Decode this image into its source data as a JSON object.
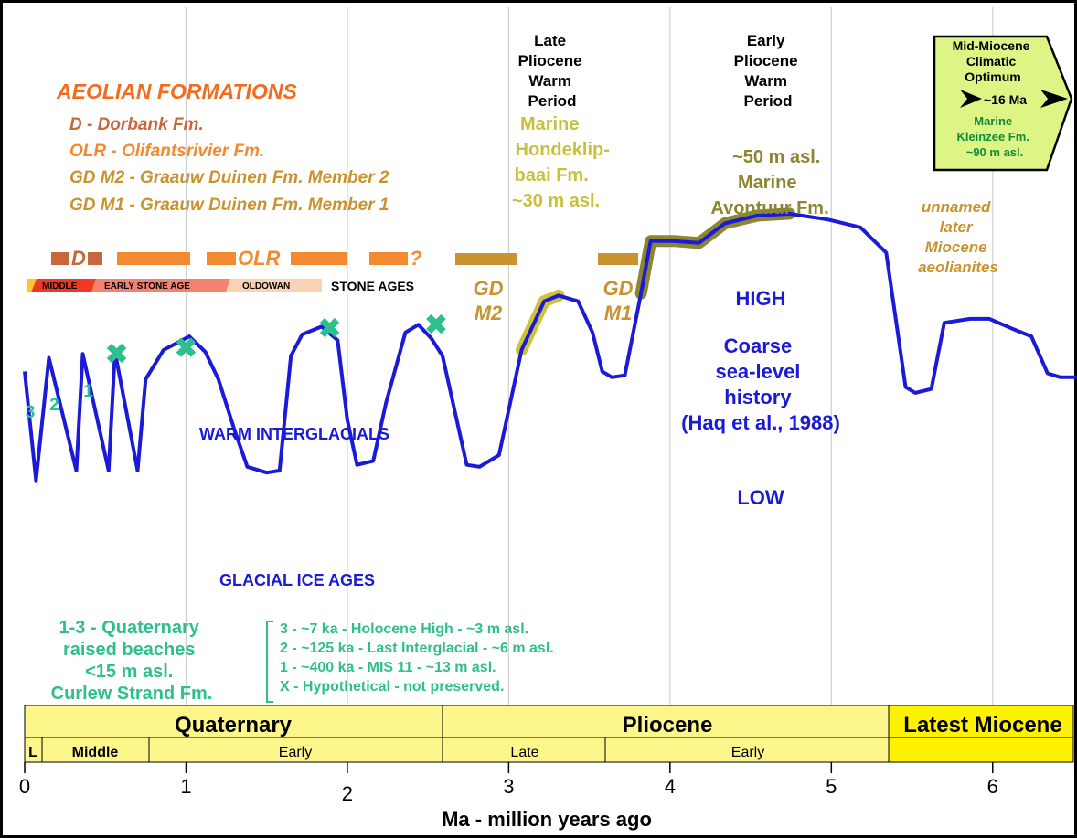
{
  "axis": {
    "xlabel": "Ma - million years ago",
    "xlim": [
      0,
      6.5
    ],
    "ticks": [
      "0",
      "1",
      "2",
      "3",
      "4",
      "5",
      "6"
    ]
  },
  "colors": {
    "curve": "#1a1ad8",
    "interval_band": "#cdc23a",
    "avontuur_band": "#8e8530",
    "beaches": "#2fbf8f",
    "aeolian_title": "#f36c1e",
    "dorbank": "#c8663c",
    "olifants": "#f38a30",
    "gd": "#c99330",
    "epoch_band": "#fdf68a",
    "latest_miocene": "#fff200",
    "miocene_box": "#dcf585"
  },
  "aeolian": {
    "title": "AEOLIAN FORMATIONS",
    "items": [
      "D - Dorbank Fm.",
      "OLR - Olifantsrivier Fm.",
      "GD M2 - Graauw Duinen Fm. Member 2",
      "GD M1 - Graauw Duinen Fm. Member 1"
    ],
    "bar_labels": {
      "d": "D",
      "olr": "OLR",
      "q": "?",
      "gd_m2": "GD M2",
      "gd_m1": "GD M1"
    }
  },
  "stone_ages": {
    "label": "STONE AGES",
    "segments": [
      "MIDDLE",
      "EARLY STONE AGE",
      "OLDOWAN"
    ]
  },
  "periods": {
    "late_pliocene": [
      "Late",
      "Pliocene",
      "Warm",
      "Period"
    ],
    "early_pliocene": [
      "Early",
      "Pliocene",
      "Warm",
      "Period"
    ],
    "mid_miocene": [
      "Mid-Miocene",
      "Climatic",
      "Optimum",
      "~16 Ma"
    ],
    "mid_miocene_marine": [
      "Marine",
      "Kleinzee Fm.",
      "~90 m asl."
    ]
  },
  "marine": {
    "hondeklip": [
      "Marine",
      "Hondeklip-",
      "baai Fm.",
      "~30 m asl."
    ],
    "avontuur": [
      "~50 m asl.",
      "Marine",
      "Avontuur Fm."
    ]
  },
  "later_miocene": [
    "unnamed",
    "later",
    "Miocene",
    "aeolianites"
  ],
  "sea_level": {
    "high": "HIGH",
    "low": "LOW",
    "desc": [
      "Coarse",
      "sea-level",
      "history",
      "(Haq et al., 1988)"
    ]
  },
  "labels": {
    "warm": "WARM INTERGLACIALS",
    "glacial": "GLACIAL ICE AGES",
    "peaks": [
      "3",
      "2",
      "1"
    ]
  },
  "beaches": {
    "text": [
      "1-3 - Quaternary",
      "raised beaches",
      "<15 m asl.",
      "Curlew Strand Fm."
    ],
    "legend": [
      "3 -  ~7 ka - Holocene High - ~3 m asl.",
      "2 - ~125 ka - Last Interglacial - ~6 m asl.",
      "1 - ~400 ka - MIS 11 - ~13 m asl.",
      "X - Hypothetical - not preserved."
    ]
  },
  "epochs": {
    "quaternary": "Quaternary",
    "pliocene": "Pliocene",
    "latest_miocene": "Latest Miocene",
    "subdivisions": [
      "L",
      "Middle",
      "Early",
      "Late",
      "Early"
    ]
  },
  "chart_data": {
    "type": "line",
    "title": "",
    "xlabel": "Ma - million years ago",
    "ylabel": "",
    "xlim": [
      0,
      6.5
    ],
    "y_scale": "relative sea level (LOW 0 - HIGH 1)",
    "grid": "vertical",
    "series": [
      {
        "x": [
          0,
          0.07,
          0.15,
          0.32,
          0.36,
          0.52,
          0.56,
          0.7,
          0.75,
          0.86,
          1.02,
          1.12,
          1.2,
          1.3,
          1.38,
          1.5,
          1.58,
          1.65,
          1.72,
          1.84,
          1.94,
          2.0,
          2.06,
          2.16,
          2.24,
          2.36,
          2.44,
          2.52,
          2.59,
          2.74,
          2.82,
          2.94,
          3.08,
          3.22,
          3.31,
          3.43,
          3.52,
          3.58,
          3.64,
          3.72,
          3.82,
          3.88,
          4.02,
          4.18,
          4.34,
          4.54,
          4.74,
          4.98,
          5.18,
          5.34,
          5.46,
          5.52,
          5.62,
          5.7,
          5.86,
          5.98,
          6.12,
          6.24,
          6.34,
          6.42,
          6.52
        ],
        "y": [
          0.66,
          0.1,
          0.73,
          0.15,
          0.75,
          0.15,
          0.76,
          0.15,
          0.62,
          0.77,
          0.84,
          0.76,
          0.62,
          0.36,
          0.17,
          0.14,
          0.15,
          0.74,
          0.85,
          0.89,
          0.82,
          0.41,
          0.18,
          0.2,
          0.5,
          0.86,
          0.9,
          0.83,
          0.74,
          0.18,
          0.17,
          0.23,
          0.77,
          1.02,
          1.05,
          1.02,
          0.86,
          0.66,
          0.63,
          0.64,
          1.06,
          1.33,
          1.33,
          1.32,
          1.42,
          1.46,
          1.47,
          1.44,
          1.4,
          1.27,
          0.58,
          0.55,
          0.57,
          0.91,
          0.93,
          0.93,
          0.88,
          0.84,
          0.65,
          0.63,
          0.63
        ]
      }
    ],
    "markers_x": [
      {
        "x": 0.57,
        "y": 0.75
      },
      {
        "x": 1.0,
        "y": 0.78
      },
      {
        "x": 1.89,
        "y": 0.88
      },
      {
        "x": 2.55,
        "y": 0.9
      }
    ],
    "beach_peaks": [
      {
        "label": "3",
        "x": 0.0
      },
      {
        "label": "2",
        "x": 0.15
      },
      {
        "label": "1",
        "x": 0.36
      }
    ],
    "epochs": [
      {
        "name": "Quaternary",
        "from": 0,
        "to": 2.58
      },
      {
        "name": "Pliocene",
        "from": 2.58,
        "to": 5.33
      },
      {
        "name": "Latest Miocene",
        "from": 5.33,
        "to": 6.5
      }
    ]
  }
}
